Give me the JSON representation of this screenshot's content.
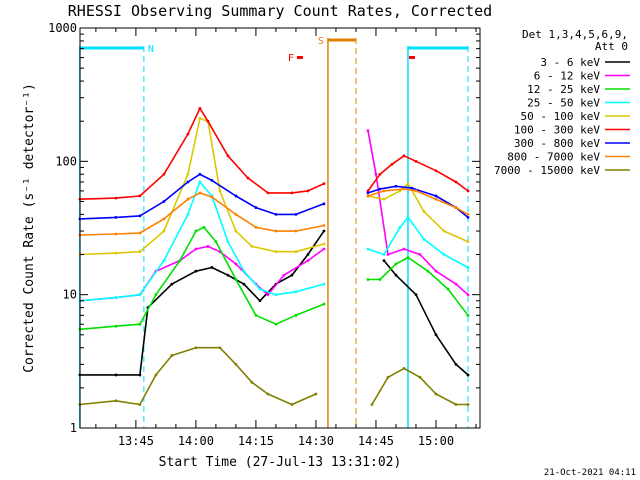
{
  "chart_data": {
    "type": "line",
    "title": "RHESSI Observing Summary Count Rates, Corrected",
    "xlabel": "Start Time (27-Jul-13 13:31:02)",
    "ylabel": "Corrected Count Rate (s⁻¹ detector⁻¹)",
    "y_scale": "log",
    "ylim": [
      1,
      1000
    ],
    "y_ticks": [
      {
        "value": 1,
        "label": "1"
      },
      {
        "value": 10,
        "label": "10"
      },
      {
        "value": 100,
        "label": "100"
      },
      {
        "value": 1000,
        "label": "1000"
      }
    ],
    "xlim": [
      "13:31:02",
      "15:11:00"
    ],
    "x_ticks": [
      {
        "value": "13:45",
        "label": "13:45"
      },
      {
        "value": "14:00",
        "label": "14:00"
      },
      {
        "value": "14:15",
        "label": "14:15"
      },
      {
        "value": "14:30",
        "label": "14:30"
      },
      {
        "value": "14:45",
        "label": "14:45"
      },
      {
        "value": "15:00",
        "label": "15:00"
      }
    ],
    "legend_header": [
      "Det 1,3,4,5,6,9,",
      "Att 0"
    ],
    "legend_position": "right",
    "timestamp": "21-Oct-2021 04:11",
    "series": [
      {
        "name": "3 - 6 keV",
        "color": "#000000",
        "points": [
          [
            "13:31",
            2.5
          ],
          [
            "13:40",
            2.5
          ],
          [
            "13:46",
            2.5
          ],
          [
            "13:48",
            8
          ],
          [
            "13:54",
            12
          ],
          [
            "14:00",
            15
          ],
          [
            "14:04",
            16
          ],
          [
            "14:08",
            14
          ],
          [
            "14:12",
            12
          ],
          [
            "14:16",
            9
          ],
          [
            "14:20",
            12
          ],
          [
            "14:24",
            14
          ],
          [
            "14:28",
            20
          ],
          [
            "14:32",
            30
          ],
          [
            "14:47",
            18
          ],
          [
            "14:50",
            14
          ],
          [
            "14:55",
            10
          ],
          [
            "15:00",
            5
          ],
          [
            "15:05",
            3
          ],
          [
            "15:08",
            2.5
          ]
        ]
      },
      {
        "name": "6 - 12 keV",
        "color": "#ff00ff",
        "points": [
          [
            "13:31",
            9
          ],
          [
            "13:40",
            9.5
          ],
          [
            "13:46",
            10
          ],
          [
            "13:50",
            15
          ],
          [
            "13:56",
            18
          ],
          [
            "14:00",
            22
          ],
          [
            "14:03",
            23
          ],
          [
            "14:06",
            21
          ],
          [
            "14:10",
            17
          ],
          [
            "14:15",
            12
          ],
          [
            "14:18",
            10
          ],
          [
            "14:22",
            14
          ],
          [
            "14:28",
            18
          ],
          [
            "14:32",
            22
          ],
          [
            "14:43",
            170
          ],
          [
            "14:45",
            80
          ],
          [
            "14:48",
            20
          ],
          [
            "14:52",
            22
          ],
          [
            "14:56",
            20
          ],
          [
            "15:00",
            15
          ],
          [
            "15:05",
            12
          ],
          [
            "15:08",
            10
          ]
        ]
      },
      {
        "name": "12 - 25 keV",
        "color": "#00e000",
        "points": [
          [
            "13:31",
            5.5
          ],
          [
            "13:40",
            5.8
          ],
          [
            "13:46",
            6
          ],
          [
            "13:50",
            10
          ],
          [
            "13:56",
            18
          ],
          [
            "14:00",
            30
          ],
          [
            "14:02",
            32
          ],
          [
            "14:05",
            25
          ],
          [
            "14:10",
            13
          ],
          [
            "14:15",
            7
          ],
          [
            "14:20",
            6
          ],
          [
            "14:25",
            7
          ],
          [
            "14:32",
            8.5
          ],
          [
            "14:43",
            13
          ],
          [
            "14:46",
            13
          ],
          [
            "14:50",
            17
          ],
          [
            "14:53",
            19
          ],
          [
            "14:58",
            15
          ],
          [
            "15:03",
            11
          ],
          [
            "15:08",
            7
          ]
        ]
      },
      {
        "name": "25 - 50 keV",
        "color": "#00ffff",
        "points": [
          [
            "13:31",
            9
          ],
          [
            "13:40",
            9.5
          ],
          [
            "13:46",
            10
          ],
          [
            "13:52",
            18
          ],
          [
            "13:58",
            40
          ],
          [
            "14:01",
            70
          ],
          [
            "14:04",
            55
          ],
          [
            "14:08",
            25
          ],
          [
            "14:12",
            15
          ],
          [
            "14:16",
            11
          ],
          [
            "14:20",
            10
          ],
          [
            "14:25",
            10.5
          ],
          [
            "14:32",
            12
          ],
          [
            "14:43",
            22
          ],
          [
            "14:47",
            20
          ],
          [
            "14:51",
            32
          ],
          [
            "14:53",
            38
          ],
          [
            "14:57",
            26
          ],
          [
            "15:02",
            20
          ],
          [
            "15:08",
            16
          ]
        ]
      },
      {
        "name": "50 - 100 keV",
        "color": "#dcc800",
        "points": [
          [
            "13:31",
            20
          ],
          [
            "13:40",
            20.5
          ],
          [
            "13:46",
            21
          ],
          [
            "13:52",
            30
          ],
          [
            "13:58",
            80
          ],
          [
            "14:01",
            210
          ],
          [
            "14:03",
            200
          ],
          [
            "14:06",
            60
          ],
          [
            "14:10",
            30
          ],
          [
            "14:14",
            23
          ],
          [
            "14:20",
            21
          ],
          [
            "14:25",
            21
          ],
          [
            "14:32",
            24
          ],
          [
            "14:43",
            55
          ],
          [
            "14:47",
            52
          ],
          [
            "14:51",
            60
          ],
          [
            "14:53",
            68
          ],
          [
            "14:57",
            42
          ],
          [
            "15:02",
            30
          ],
          [
            "15:08",
            25
          ]
        ]
      },
      {
        "name": "100 - 300 keV",
        "color": "#ff0000",
        "points": [
          [
            "13:31",
            52
          ],
          [
            "13:40",
            53
          ],
          [
            "13:46",
            55
          ],
          [
            "13:52",
            80
          ],
          [
            "13:58",
            160
          ],
          [
            "14:01",
            250
          ],
          [
            "14:03",
            200
          ],
          [
            "14:08",
            110
          ],
          [
            "14:13",
            75
          ],
          [
            "14:18",
            58
          ],
          [
            "14:24",
            58
          ],
          [
            "14:28",
            60
          ],
          [
            "14:32",
            68
          ],
          [
            "14:43",
            60
          ],
          [
            "14:46",
            80
          ],
          [
            "14:49",
            95
          ],
          [
            "14:52",
            110
          ],
          [
            "14:55",
            100
          ],
          [
            "15:00",
            85
          ],
          [
            "15:05",
            70
          ],
          [
            "15:08",
            60
          ]
        ]
      },
      {
        "name": "300 - 800 keV",
        "color": "#0000ff",
        "points": [
          [
            "13:31",
            37
          ],
          [
            "13:40",
            38
          ],
          [
            "13:46",
            39
          ],
          [
            "13:52",
            50
          ],
          [
            "13:58",
            70
          ],
          [
            "14:01",
            80
          ],
          [
            "14:04",
            72
          ],
          [
            "14:10",
            55
          ],
          [
            "14:15",
            45
          ],
          [
            "14:20",
            40
          ],
          [
            "14:25",
            40
          ],
          [
            "14:32",
            48
          ],
          [
            "14:43",
            58
          ],
          [
            "14:46",
            62
          ],
          [
            "14:50",
            65
          ],
          [
            "14:54",
            63
          ],
          [
            "15:00",
            55
          ],
          [
            "15:05",
            45
          ],
          [
            "15:08",
            38
          ]
        ]
      },
      {
        "name": "800 - 7000 keV",
        "color": "#ff8000",
        "points": [
          [
            "13:31",
            28
          ],
          [
            "13:40",
            28.5
          ],
          [
            "13:46",
            29
          ],
          [
            "13:52",
            37
          ],
          [
            "13:58",
            52
          ],
          [
            "14:01",
            58
          ],
          [
            "14:04",
            54
          ],
          [
            "14:10",
            40
          ],
          [
            "14:15",
            32
          ],
          [
            "14:20",
            30
          ],
          [
            "14:25",
            30
          ],
          [
            "14:32",
            33
          ],
          [
            "14:43",
            55
          ],
          [
            "14:47",
            60
          ],
          [
            "14:52",
            62
          ],
          [
            "14:55",
            60
          ],
          [
            "15:00",
            52
          ],
          [
            "15:05",
            45
          ],
          [
            "15:08",
            40
          ]
        ]
      },
      {
        "name": "7000 - 15000 keV",
        "color": "#808000",
        "points": [
          [
            "13:31",
            1.5
          ],
          [
            "13:40",
            1.6
          ],
          [
            "13:46",
            1.5
          ],
          [
            "13:50",
            2.5
          ],
          [
            "13:54",
            3.5
          ],
          [
            "14:00",
            4
          ],
          [
            "14:06",
            4
          ],
          [
            "14:10",
            3
          ],
          [
            "14:14",
            2.2
          ],
          [
            "14:18",
            1.8
          ],
          [
            "14:24",
            1.5
          ],
          [
            "14:30",
            1.8
          ],
          [
            "14:44",
            1.5
          ],
          [
            "14:48",
            2.4
          ],
          [
            "14:52",
            2.8
          ],
          [
            "14:56",
            2.4
          ],
          [
            "15:00",
            1.8
          ],
          [
            "15:05",
            1.5
          ],
          [
            "15:08",
            1.5
          ]
        ]
      }
    ],
    "markers": [
      {
        "label": "N",
        "type": "night",
        "start": "13:31",
        "end": "13:47",
        "color": "#00e0ff"
      },
      {
        "label": "",
        "type": "night",
        "start": "14:53",
        "end": "15:08",
        "color": "#00e0ff"
      },
      {
        "label": "S",
        "type": "saa",
        "start": "14:33",
        "end": "14:40",
        "color": "#e08000"
      },
      {
        "label": "F",
        "type": "flare",
        "time": "14:26",
        "color": "#ff0000"
      },
      {
        "label": "",
        "type": "flare",
        "time": "14:54",
        "color": "#ff0000"
      }
    ],
    "grid": false
  }
}
